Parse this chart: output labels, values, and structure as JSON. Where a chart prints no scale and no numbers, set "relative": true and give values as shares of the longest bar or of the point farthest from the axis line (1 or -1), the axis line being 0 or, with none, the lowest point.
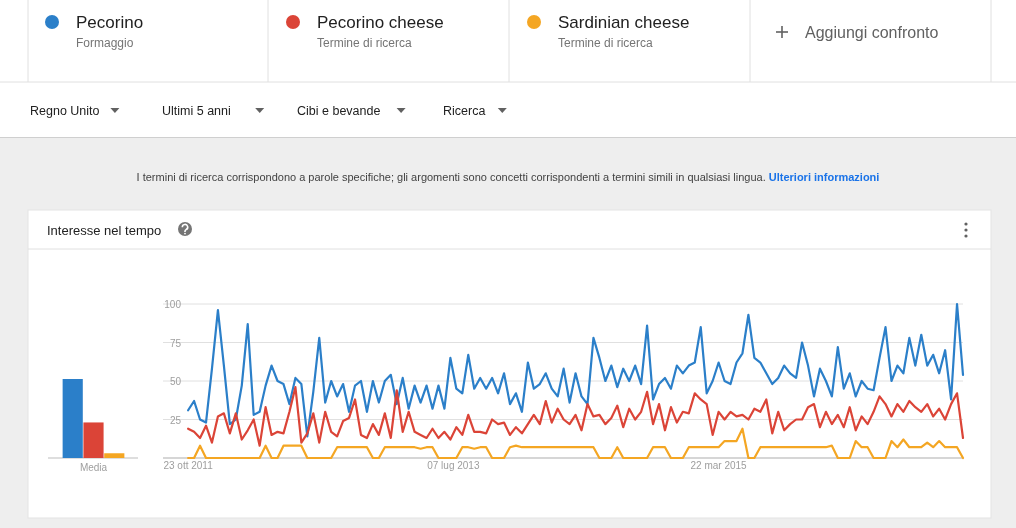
{
  "chart_data": [
    {
      "type": "bar",
      "relative": true,
      "categories": [
        "Media"
      ],
      "series": [
        {
          "color": "#2b7fc9",
          "values": [
            1
          ]
        },
        {
          "color": "#db4437",
          "values": [
            0.45
          ]
        },
        {
          "color": "#f4a623",
          "values": [
            0.06
          ]
        }
      ]
    },
    {
      "type": "line",
      "title": "Interesse nel tempo",
      "legend": "top",
      "grid": "y",
      "marker": "none",
      "line_style": "solid",
      "annotations": [
        "Formaggio",
        "Termine di ricerca",
        "Termine di ricerca",
        "Aggiungi confronto",
        "Regno Unito",
        "Ultimi 5 anni",
        "Cibi e bevande",
        "Ricerca",
        "I termini di ricerca corrispondono a parole specifiche; gli argomenti sono concetti corrispondenti a termini simili in qualsiasi lingua.",
        "Ulteriori informazioni"
      ],
      "xlim": [
        "2011-08-25",
        "2016-10-16"
      ],
      "xticks": [
        {
          "value": "2011-10-23",
          "label": "23 ott 2011"
        },
        {
          "value": "2013-07-07",
          "label": "07 lug 2013"
        },
        {
          "value": "2015-03-22",
          "label": "22 mar 2015"
        }
      ],
      "ylim": [
        0,
        100
      ],
      "yticks": [
        {
          "value": 0,
          "label": null
        },
        25,
        50,
        75,
        100
      ],
      "x": [
        "2011-10-23",
        "2011-11-06",
        "2011-11-20",
        "2011-12-04",
        "2011-12-18",
        "2012-01-01",
        "2012-01-15",
        "2012-01-29",
        "2012-02-12",
        "2012-02-26",
        "2012-03-11",
        "2012-03-25",
        "2012-04-08",
        "2012-04-22",
        "2012-05-06",
        "2012-05-20",
        "2012-06-03",
        "2012-06-17",
        "2012-07-01",
        "2012-07-15",
        "2012-07-29",
        "2012-08-12",
        "2012-08-26",
        "2012-09-09",
        "2012-09-23",
        "2012-10-07",
        "2012-10-21",
        "2012-11-04",
        "2012-11-18",
        "2012-12-02",
        "2012-12-16",
        "2012-12-30",
        "2013-01-13",
        "2013-01-27",
        "2013-02-10",
        "2013-02-24",
        "2013-03-10",
        "2013-03-24",
        "2013-04-07",
        "2013-04-21",
        "2013-05-05",
        "2013-05-19",
        "2013-06-02",
        "2013-06-16",
        "2013-06-30",
        "2013-07-14",
        "2013-07-28",
        "2013-08-11",
        "2013-08-25",
        "2013-09-08",
        "2013-09-22",
        "2013-10-06",
        "2013-10-20",
        "2013-11-03",
        "2013-11-17",
        "2013-12-01",
        "2013-12-15",
        "2013-12-29",
        "2014-01-12",
        "2014-01-26",
        "2014-02-09",
        "2014-02-23",
        "2014-03-09",
        "2014-03-23",
        "2014-04-06",
        "2014-04-20",
        "2014-05-04",
        "2014-05-18",
        "2014-06-01",
        "2014-06-15",
        "2014-06-29",
        "2014-07-13",
        "2014-07-27",
        "2014-08-10",
        "2014-08-24",
        "2014-09-07",
        "2014-09-21",
        "2014-10-05",
        "2014-10-19",
        "2014-11-02",
        "2014-11-16",
        "2014-11-30",
        "2014-12-14",
        "2014-12-28",
        "2015-01-11",
        "2015-01-25",
        "2015-02-08",
        "2015-02-22",
        "2015-03-08",
        "2015-03-22",
        "2015-04-05",
        "2015-04-19",
        "2015-05-03",
        "2015-05-17",
        "2015-05-31",
        "2015-06-14",
        "2015-06-28",
        "2015-07-12",
        "2015-07-26",
        "2015-08-09",
        "2015-08-23",
        "2015-09-06",
        "2015-09-20",
        "2015-10-04",
        "2015-10-18",
        "2015-11-01",
        "2015-11-15",
        "2015-11-29",
        "2015-12-13",
        "2015-12-27",
        "2016-01-10",
        "2016-01-24",
        "2016-02-07",
        "2016-02-21",
        "2016-03-06",
        "2016-03-20",
        "2016-04-03",
        "2016-04-17",
        "2016-05-01",
        "2016-05-15",
        "2016-05-29",
        "2016-06-12",
        "2016-06-26",
        "2016-07-10",
        "2016-07-24",
        "2016-08-07",
        "2016-08-21",
        "2016-09-04",
        "2016-09-18",
        "2016-10-02",
        "2016-10-16"
      ],
      "series": [
        {
          "name": "Pecorino",
          "color": "#2b7fc9",
          "values": [
            31,
            37,
            25,
            23,
            58,
            96,
            60,
            22,
            25,
            47,
            87,
            28,
            30,
            47,
            60,
            50,
            48,
            35,
            52,
            48,
            14,
            43,
            78,
            36,
            50,
            40,
            48,
            30,
            47,
            50,
            30,
            50,
            36,
            50,
            54,
            35,
            52,
            32,
            47,
            36,
            47,
            32,
            47,
            32,
            65,
            45,
            42,
            67,
            45,
            52,
            45,
            52,
            42,
            55,
            35,
            42,
            30,
            62,
            45,
            48,
            55,
            45,
            40,
            58,
            36,
            55,
            40,
            35,
            78,
            65,
            50,
            60,
            46,
            58,
            50,
            60,
            48,
            86,
            38,
            48,
            52,
            45,
            60,
            55,
            60,
            62,
            85,
            42,
            50,
            62,
            50,
            48,
            62,
            68,
            93,
            65,
            62,
            55,
            48,
            52,
            60,
            55,
            52,
            75,
            60,
            40,
            58,
            50,
            40,
            72,
            45,
            55,
            40,
            50,
            45,
            44,
            65,
            85,
            50,
            60,
            55,
            78,
            60,
            80,
            60,
            67,
            55,
            70,
            38,
            100,
            54
          ]
        },
        {
          "name": "Pecorino cheese",
          "color": "#db4437",
          "values": [
            19,
            17,
            13,
            21,
            10,
            27,
            29,
            16,
            29,
            12,
            18,
            25,
            8,
            33,
            15,
            17,
            16,
            30,
            46,
            10,
            16,
            29,
            10,
            30,
            17,
            14,
            24,
            26,
            38,
            15,
            13,
            22,
            15,
            29,
            13,
            44,
            17,
            30,
            17,
            15,
            13,
            19,
            13,
            17,
            12,
            20,
            15,
            28,
            17,
            17,
            16,
            25,
            22,
            23,
            15,
            20,
            16,
            22,
            28,
            22,
            37,
            23,
            32,
            25,
            22,
            28,
            18,
            35,
            27,
            28,
            22,
            26,
            34,
            20,
            32,
            25,
            30,
            43,
            22,
            35,
            18,
            33,
            23,
            30,
            29,
            42,
            38,
            35,
            15,
            30,
            25,
            30,
            27,
            28,
            25,
            32,
            30,
            38,
            16,
            30,
            18,
            22,
            25,
            25,
            33,
            35,
            20,
            30,
            22,
            28,
            20,
            33,
            18,
            27,
            22,
            30,
            40,
            35,
            27,
            35,
            30,
            37,
            33,
            30,
            35,
            27,
            32,
            25,
            35,
            42,
            13
          ]
        },
        {
          "name": "Sardinian cheese",
          "color": "#f4a623",
          "values": [
            0,
            0,
            8,
            0,
            0,
            0,
            0,
            0,
            0,
            0,
            0,
            0,
            0,
            8,
            0,
            0,
            8,
            8,
            8,
            8,
            0,
            0,
            0,
            0,
            0,
            7,
            7,
            7,
            7,
            7,
            7,
            0,
            0,
            7,
            7,
            7,
            7,
            7,
            7,
            6,
            7,
            7,
            0,
            0,
            0,
            0,
            7,
            7,
            6,
            7,
            7,
            0,
            0,
            0,
            7,
            8,
            7,
            7,
            7,
            7,
            7,
            7,
            7,
            7,
            7,
            7,
            7,
            7,
            7,
            0,
            0,
            0,
            7,
            0,
            0,
            0,
            0,
            0,
            7,
            7,
            7,
            0,
            0,
            0,
            7,
            7,
            7,
            7,
            7,
            7,
            11,
            11,
            11,
            19,
            0,
            0,
            7,
            7,
            7,
            7,
            7,
            7,
            7,
            7,
            7,
            7,
            7,
            7,
            8,
            0,
            0,
            0,
            11,
            7,
            7,
            0,
            0,
            0,
            11,
            7,
            12,
            7,
            7,
            7,
            10,
            7,
            11,
            7,
            7,
            7,
            0
          ]
        }
      ]
    }
  ]
}
